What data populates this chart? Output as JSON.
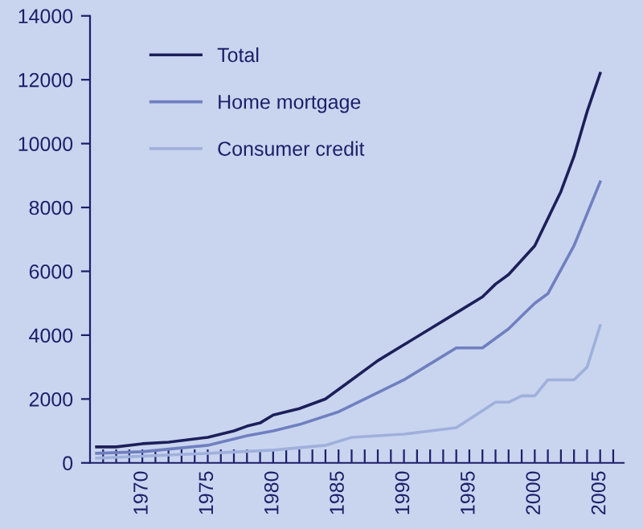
{
  "chart_data": {
    "type": "line",
    "xlim": [
      1966,
      2006.8
    ],
    "ylim": [
      0,
      14000
    ],
    "yticks": [
      0,
      2000,
      4000,
      6000,
      8000,
      10000,
      12000,
      14000
    ],
    "xticks": [
      {
        "value": 1967,
        "label": null
      },
      {
        "value": 1968,
        "label": null
      },
      {
        "value": 1969,
        "label": null
      },
      1970,
      {
        "value": 1971,
        "label": null
      },
      {
        "value": 1972,
        "label": null
      },
      {
        "value": 1973,
        "label": null
      },
      {
        "value": 1974,
        "label": null
      },
      1975,
      {
        "value": 1976,
        "label": null
      },
      {
        "value": 1977,
        "label": null
      },
      {
        "value": 1978,
        "label": null
      },
      {
        "value": 1979,
        "label": null
      },
      1980,
      {
        "value": 1981,
        "label": null
      },
      {
        "value": 1982,
        "label": null
      },
      {
        "value": 1983,
        "label": null
      },
      {
        "value": 1984,
        "label": null
      },
      1985,
      {
        "value": 1986,
        "label": null
      },
      {
        "value": 1987,
        "label": null
      },
      {
        "value": 1988,
        "label": null
      },
      {
        "value": 1989,
        "label": null
      },
      1990,
      {
        "value": 1991,
        "label": null
      },
      {
        "value": 1992,
        "label": null
      },
      {
        "value": 1993,
        "label": null
      },
      {
        "value": 1994,
        "label": null
      },
      1995,
      {
        "value": 1996,
        "label": null
      },
      {
        "value": 1997,
        "label": null
      },
      {
        "value": 1998,
        "label": null
      },
      {
        "value": 1999,
        "label": null
      },
      2000,
      {
        "value": 2001,
        "label": null
      },
      {
        "value": 2002,
        "label": null
      },
      {
        "value": 2003,
        "label": null
      },
      {
        "value": 2004,
        "label": null
      },
      2005,
      {
        "value": 2006,
        "label": null
      }
    ],
    "legend": "top left",
    "grid": false,
    "marker": "none",
    "line_style": "solid",
    "series": [
      {
        "name": "Total",
        "color": "#1c1f5a",
        "x": [
          1966.5,
          1968,
          1970,
          1972,
          1975,
          1977,
          1978,
          1979,
          1980,
          1982,
          1984,
          1986,
          1988,
          1990,
          1992,
          1994,
          1996,
          1997,
          1998,
          2000,
          2002,
          2003,
          2004,
          2005
        ],
        "values": [
          500,
          500,
          600,
          650,
          800,
          1000,
          1150,
          1250,
          1500,
          1700,
          2000,
          2600,
          3200,
          3700,
          4200,
          4700,
          5200,
          5600,
          5900,
          6800,
          8500,
          9600,
          11000,
          12200
        ]
      },
      {
        "name": "Home mortgage",
        "color": "#6f7fc0",
        "x": [
          1966.5,
          1970,
          1975,
          1978,
          1980,
          1982,
          1985,
          1988,
          1990,
          1992,
          1994,
          1996,
          1998,
          1999,
          2000,
          2001,
          2003,
          2005
        ],
        "values": [
          300,
          350,
          550,
          850,
          1000,
          1200,
          1600,
          2200,
          2600,
          3100,
          3600,
          3600,
          4200,
          4600,
          5000,
          5300,
          6800,
          8800
        ]
      },
      {
        "name": "Consumer credit",
        "color": "#a0b0dc",
        "x": [
          1966.5,
          1975,
          1980,
          1984,
          1986,
          1990,
          1994,
          1997,
          1998,
          1999,
          2000,
          2001,
          2003,
          2004,
          2005
        ],
        "values": [
          150,
          300,
          400,
          550,
          800,
          900,
          1100,
          1900,
          1900,
          2100,
          2100,
          2600,
          2600,
          3000,
          4300
        ]
      }
    ]
  }
}
